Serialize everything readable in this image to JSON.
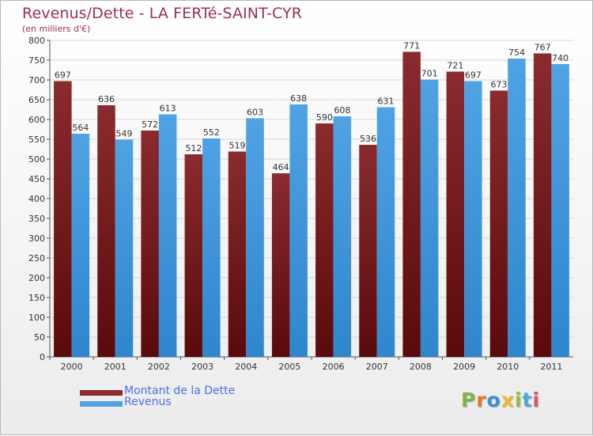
{
  "chart_title": "Revenus/Dette - LA FERTé-SAINT-CYR",
  "chart_subtitle": "(en milliers d'€)",
  "colors": {
    "dette": "#8a2b2e",
    "revenus": "#4fa3e4",
    "title": "#9b3050",
    "legend_text": "#4b6fe8"
  },
  "legend": {
    "dette_label": "Montant de la Dette",
    "revenus_label": "Revenus"
  },
  "logo": {
    "text": "Proxiti",
    "letter_colors": [
      "#7ab648",
      "#e8742a",
      "#3e8fd0",
      "#f0b430",
      "#8fbf3a",
      "#4aa8d8",
      "#e24e6a"
    ]
  },
  "chart_data": {
    "type": "bar",
    "title": "Revenus/Dette - LA FERTé-SAINT-CYR",
    "subtitle": "(en milliers d'€)",
    "categories": [
      "2000",
      "2001",
      "2002",
      "2003",
      "2004",
      "2005",
      "2006",
      "2007",
      "2008",
      "2009",
      "2010",
      "2011"
    ],
    "series": [
      {
        "name": "Montant de la Dette",
        "values": [
          697,
          636,
          572,
          512,
          519,
          464,
          590,
          536,
          771,
          721,
          673,
          767
        ]
      },
      {
        "name": "Revenus",
        "values": [
          564,
          549,
          613,
          552,
          603,
          638,
          608,
          631,
          701,
          697,
          754,
          740
        ]
      }
    ],
    "ylim": [
      0,
      800
    ],
    "yticks": [
      0,
      50,
      100,
      150,
      200,
      250,
      300,
      350,
      400,
      450,
      500,
      550,
      600,
      650,
      700,
      750,
      800
    ],
    "grid": true,
    "legend_position": "bottom-left"
  }
}
